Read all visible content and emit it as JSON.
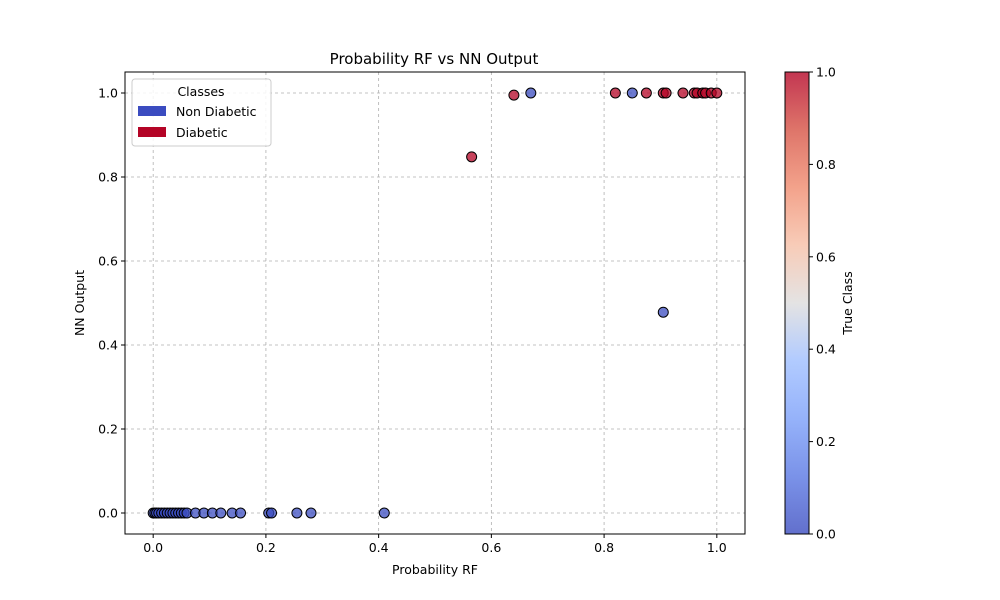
{
  "chart_data": {
    "type": "scatter",
    "title": "Probability RF vs NN Output",
    "xlabel": "Probability RF",
    "ylabel": "NN Output",
    "xlim": [
      -0.05,
      1.05
    ],
    "ylim": [
      -0.05,
      1.05
    ],
    "xticks": [
      "0.0",
      "0.2",
      "0.4",
      "0.6",
      "0.8",
      "1.0"
    ],
    "yticks": [
      "0.0",
      "0.2",
      "0.4",
      "0.6",
      "0.8",
      "1.0"
    ],
    "grid": true,
    "legend": {
      "title": "Classes",
      "position": "upper-left",
      "entries": [
        {
          "label": "Non Diabetic",
          "color": "#3b4cc0"
        },
        {
          "label": "Diabetic",
          "color": "#b40426"
        }
      ]
    },
    "colorbar": {
      "label": "True Class",
      "ticks": [
        "0.0",
        "0.2",
        "0.4",
        "0.6",
        "0.8",
        "1.0"
      ],
      "colormap": "coolwarm"
    },
    "series": [
      {
        "class": 0,
        "color": "#3b4cc0",
        "points": [
          [
            0.0,
            0.0
          ],
          [
            0.003,
            0.0
          ],
          [
            0.006,
            0.0
          ],
          [
            0.01,
            0.0
          ],
          [
            0.015,
            0.0
          ],
          [
            0.02,
            0.0
          ],
          [
            0.025,
            0.0
          ],
          [
            0.03,
            0.0
          ],
          [
            0.035,
            0.0
          ],
          [
            0.04,
            0.0
          ],
          [
            0.045,
            0.0
          ],
          [
            0.05,
            0.0
          ],
          [
            0.055,
            0.0
          ],
          [
            0.06,
            0.0
          ],
          [
            0.075,
            0.0
          ],
          [
            0.09,
            0.0
          ],
          [
            0.105,
            0.0
          ],
          [
            0.12,
            0.0
          ],
          [
            0.14,
            0.0
          ],
          [
            0.155,
            0.0
          ],
          [
            0.205,
            0.0
          ],
          [
            0.21,
            0.0
          ],
          [
            0.255,
            0.0
          ],
          [
            0.28,
            0.0
          ],
          [
            0.41,
            0.0
          ],
          [
            0.67,
            1.0
          ],
          [
            0.85,
            1.0
          ],
          [
            0.905,
            0.478
          ]
        ]
      },
      {
        "class": 1,
        "color": "#b40426",
        "points": [
          [
            0.565,
            0.848
          ],
          [
            0.64,
            0.995
          ],
          [
            0.82,
            1.0
          ],
          [
            0.875,
            1.0
          ],
          [
            0.905,
            1.0
          ],
          [
            0.91,
            1.0
          ],
          [
            0.94,
            1.0
          ],
          [
            0.96,
            1.0
          ],
          [
            0.965,
            1.0
          ],
          [
            0.975,
            1.0
          ],
          [
            0.98,
            1.0
          ],
          [
            0.99,
            1.0
          ],
          [
            1.0,
            1.0
          ]
        ]
      }
    ]
  }
}
